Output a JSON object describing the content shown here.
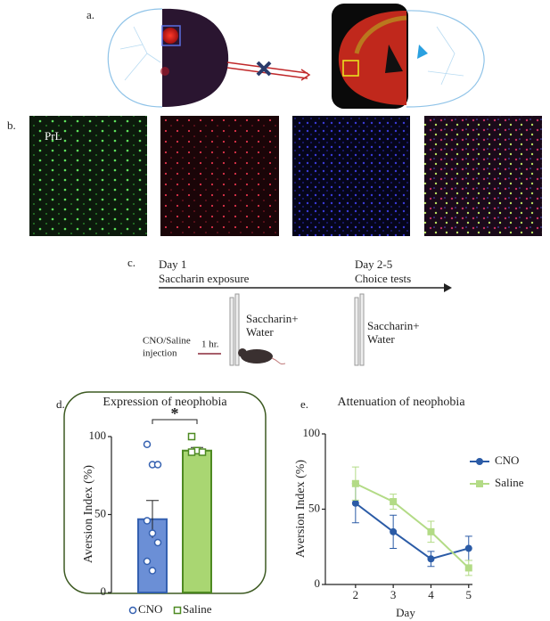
{
  "panel_a": {
    "label": "a."
  },
  "panel_b": {
    "label": "b.",
    "region": "PrL"
  },
  "panel_c": {
    "label": "c.",
    "day1": "Day 1",
    "day1_event": "Saccharin exposure",
    "day2": "Day 2-5",
    "day2_event": "Choice tests",
    "bottles_1": [
      "Saccharin+",
      "Water"
    ],
    "bottles_2": [
      "Saccharin+",
      "Water"
    ],
    "injection": [
      "CNO/Saline",
      "injection"
    ],
    "delay": "1 hr."
  },
  "chart_data": [
    {
      "type": "bar",
      "label": "d.",
      "title": "Expression of neophobia",
      "ylabel": "Aversion Index (%)",
      "categories": [
        "CNO",
        "Saline"
      ],
      "values": [
        47,
        91
      ],
      "errors": [
        12,
        2
      ],
      "points": [
        [
          95,
          82,
          82,
          46,
          38,
          32,
          20,
          14
        ],
        [
          100,
          91,
          90,
          90
        ]
      ],
      "colors": [
        "#6b8fd6",
        "#a9d672"
      ],
      "edge_colors": [
        "#3460b0",
        "#4e8a22"
      ],
      "ylim": [
        0,
        100
      ],
      "yticks": [
        0,
        50,
        100
      ],
      "annotation": "*"
    },
    {
      "type": "line",
      "label": "e.",
      "title": "Attenuation of neophobia",
      "xlabel": "Day",
      "ylabel": "Aversion Index (%)",
      "x": [
        2,
        3,
        4,
        5
      ],
      "xlim": [
        1.2,
        5.1
      ],
      "xticks": [
        2,
        3,
        4,
        5
      ],
      "ylim": [
        0,
        100
      ],
      "yticks": [
        0,
        50,
        100
      ],
      "legend": "right",
      "series": [
        {
          "name": "CNO",
          "color": "#2b5ba6",
          "values": [
            54,
            35,
            17,
            24
          ],
          "errors": [
            13,
            11,
            5,
            8
          ]
        },
        {
          "name": "Saline",
          "color": "#b3db86",
          "values": [
            67,
            55,
            35,
            11
          ],
          "errors": [
            11,
            5,
            7,
            5
          ]
        }
      ]
    }
  ]
}
